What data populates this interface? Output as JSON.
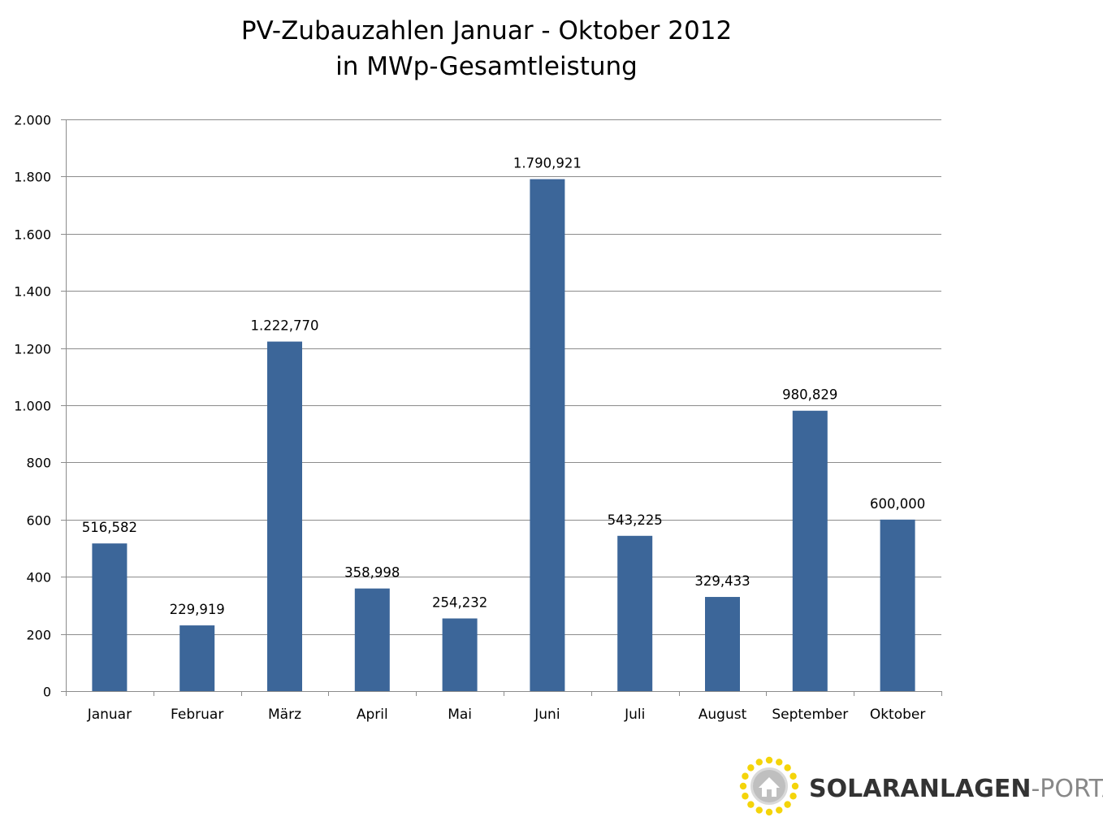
{
  "chart_data": {
    "type": "bar",
    "title": [
      "PV-Zubauzahlen Januar - Oktober 2012",
      "in MWp-Gesamtleistung"
    ],
    "categories": [
      "Januar",
      "Februar",
      "März",
      "April",
      "Mai",
      "Juni",
      "Juli",
      "August",
      "September",
      "Oktober"
    ],
    "values": [
      516.582,
      229.919,
      1222.77,
      358.998,
      254.232,
      1790.921,
      543.225,
      329.433,
      980.829,
      600.0
    ],
    "value_labels": [
      "516,582",
      "229,919",
      "1.222,770",
      "358,998",
      "254,232",
      "1.790,921",
      "543,225",
      "329,433",
      "980,829",
      "600,000"
    ],
    "ylim": [
      0,
      2000
    ],
    "yticks": [
      0,
      200,
      400,
      600,
      800,
      1000,
      1200,
      1400,
      1600,
      1800,
      2000
    ],
    "ytick_labels": [
      "0",
      "200",
      "400",
      "600",
      "800",
      "1.000",
      "1.200",
      "1.400",
      "1.600",
      "1.800",
      "2.000"
    ],
    "xlabel": "",
    "ylabel": "",
    "grid": true,
    "legend": "none",
    "bar_color": "#3c6699",
    "grid_color": "#8c8c8c"
  },
  "logo": {
    "brand_main": "SOLARANLAGEN",
    "brand_suffix": "-PORTAL",
    "icon": "sun-house-icon",
    "main_color": "#333333",
    "suffix_color": "#888888",
    "sun_color": "#f4d40a"
  }
}
